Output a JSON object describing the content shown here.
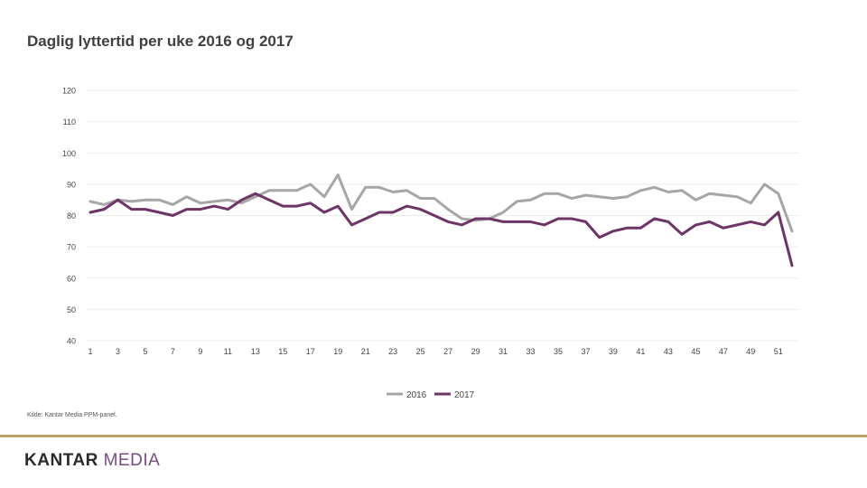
{
  "title": "Daglig lyttertid per uke 2016 og 2017",
  "source": "Kilde: Kantar Media PPM-panel.",
  "logo": {
    "part1": "KANTAR",
    "part2": "MEDIA"
  },
  "colors": {
    "series2016": "#a6a6a6",
    "series2017": "#6e3468",
    "grid": "#ececec",
    "gold": "#b9a56a"
  },
  "chart_data": {
    "type": "line",
    "title": "Daglig lyttertid per uke 2016 og 2017",
    "xlabel": "",
    "ylabel": "",
    "ylim": [
      40,
      120
    ],
    "yticks": [
      40,
      50,
      60,
      70,
      80,
      90,
      100,
      110,
      120
    ],
    "xticks": [
      1,
      3,
      5,
      7,
      9,
      11,
      13,
      15,
      17,
      19,
      21,
      23,
      25,
      27,
      29,
      31,
      33,
      35,
      37,
      39,
      41,
      43,
      45,
      47,
      49,
      51
    ],
    "grid": true,
    "legend": "bottom",
    "x": [
      1,
      2,
      3,
      4,
      5,
      6,
      7,
      8,
      9,
      10,
      11,
      12,
      13,
      14,
      15,
      16,
      17,
      18,
      19,
      20,
      21,
      22,
      23,
      24,
      25,
      26,
      27,
      28,
      29,
      30,
      31,
      32,
      33,
      34,
      35,
      36,
      37,
      38,
      39,
      40,
      41,
      42,
      43,
      44,
      45,
      46,
      47,
      48,
      49,
      50,
      51,
      52
    ],
    "series": [
      {
        "name": "2016",
        "values": [
          84.5,
          83.5,
          85,
          84.5,
          85,
          85,
          83.5,
          86,
          84,
          84.5,
          85,
          84,
          86,
          88,
          88,
          88,
          90,
          86,
          93,
          82,
          89,
          89,
          87.5,
          88,
          85.5,
          85.5,
          82,
          79,
          78.5,
          79,
          81,
          84.5,
          85,
          87,
          87,
          85.5,
          86.5,
          86,
          85.5,
          86,
          88,
          89,
          87.5,
          88,
          85,
          87,
          86.5,
          86,
          84,
          90,
          87,
          75
        ]
      },
      {
        "name": "2017",
        "values": [
          81,
          82,
          85,
          82,
          82,
          81,
          80,
          82,
          82,
          83,
          82,
          85,
          87,
          85,
          83,
          83,
          84,
          81,
          83,
          77,
          79,
          81,
          81,
          83,
          82,
          80,
          78,
          77,
          79,
          79,
          78,
          78,
          78,
          77,
          79,
          79,
          78,
          73,
          75,
          76,
          76,
          79,
          78,
          74,
          77,
          78,
          76,
          77,
          78,
          77,
          81,
          64
        ]
      }
    ]
  }
}
